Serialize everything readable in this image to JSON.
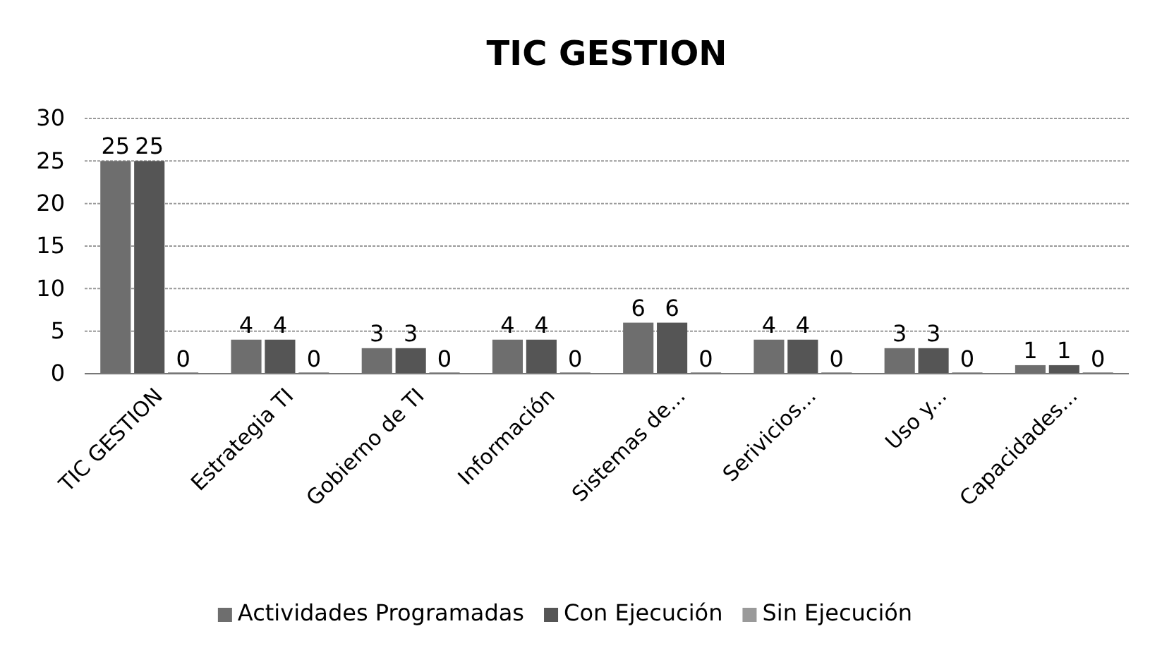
{
  "chart_data": {
    "type": "bar",
    "title": "TIC GESTION",
    "categories": [
      "TIC GESTION",
      "Estrategia TI",
      "Gobierno de TI",
      "Información",
      "Sistemas de...",
      "Serivicios...",
      "Uso y...",
      "Capacidades..."
    ],
    "series": [
      {
        "name": "Actividades Programadas",
        "color": "#6e6e6e",
        "values": [
          25,
          4,
          3,
          4,
          6,
          4,
          3,
          1
        ]
      },
      {
        "name": "Con Ejecución",
        "color": "#555555",
        "values": [
          25,
          4,
          3,
          4,
          6,
          4,
          3,
          1
        ]
      },
      {
        "name": "Sin Ejecución",
        "color": "#9a9a9a",
        "values": [
          0,
          0,
          0,
          0,
          0,
          0,
          0,
          0
        ]
      }
    ],
    "ylim": [
      0,
      30
    ],
    "yticks": [
      0,
      5,
      10,
      15,
      20,
      25,
      30
    ],
    "grid": "y",
    "legend": "bottom",
    "data_labels": true
  }
}
